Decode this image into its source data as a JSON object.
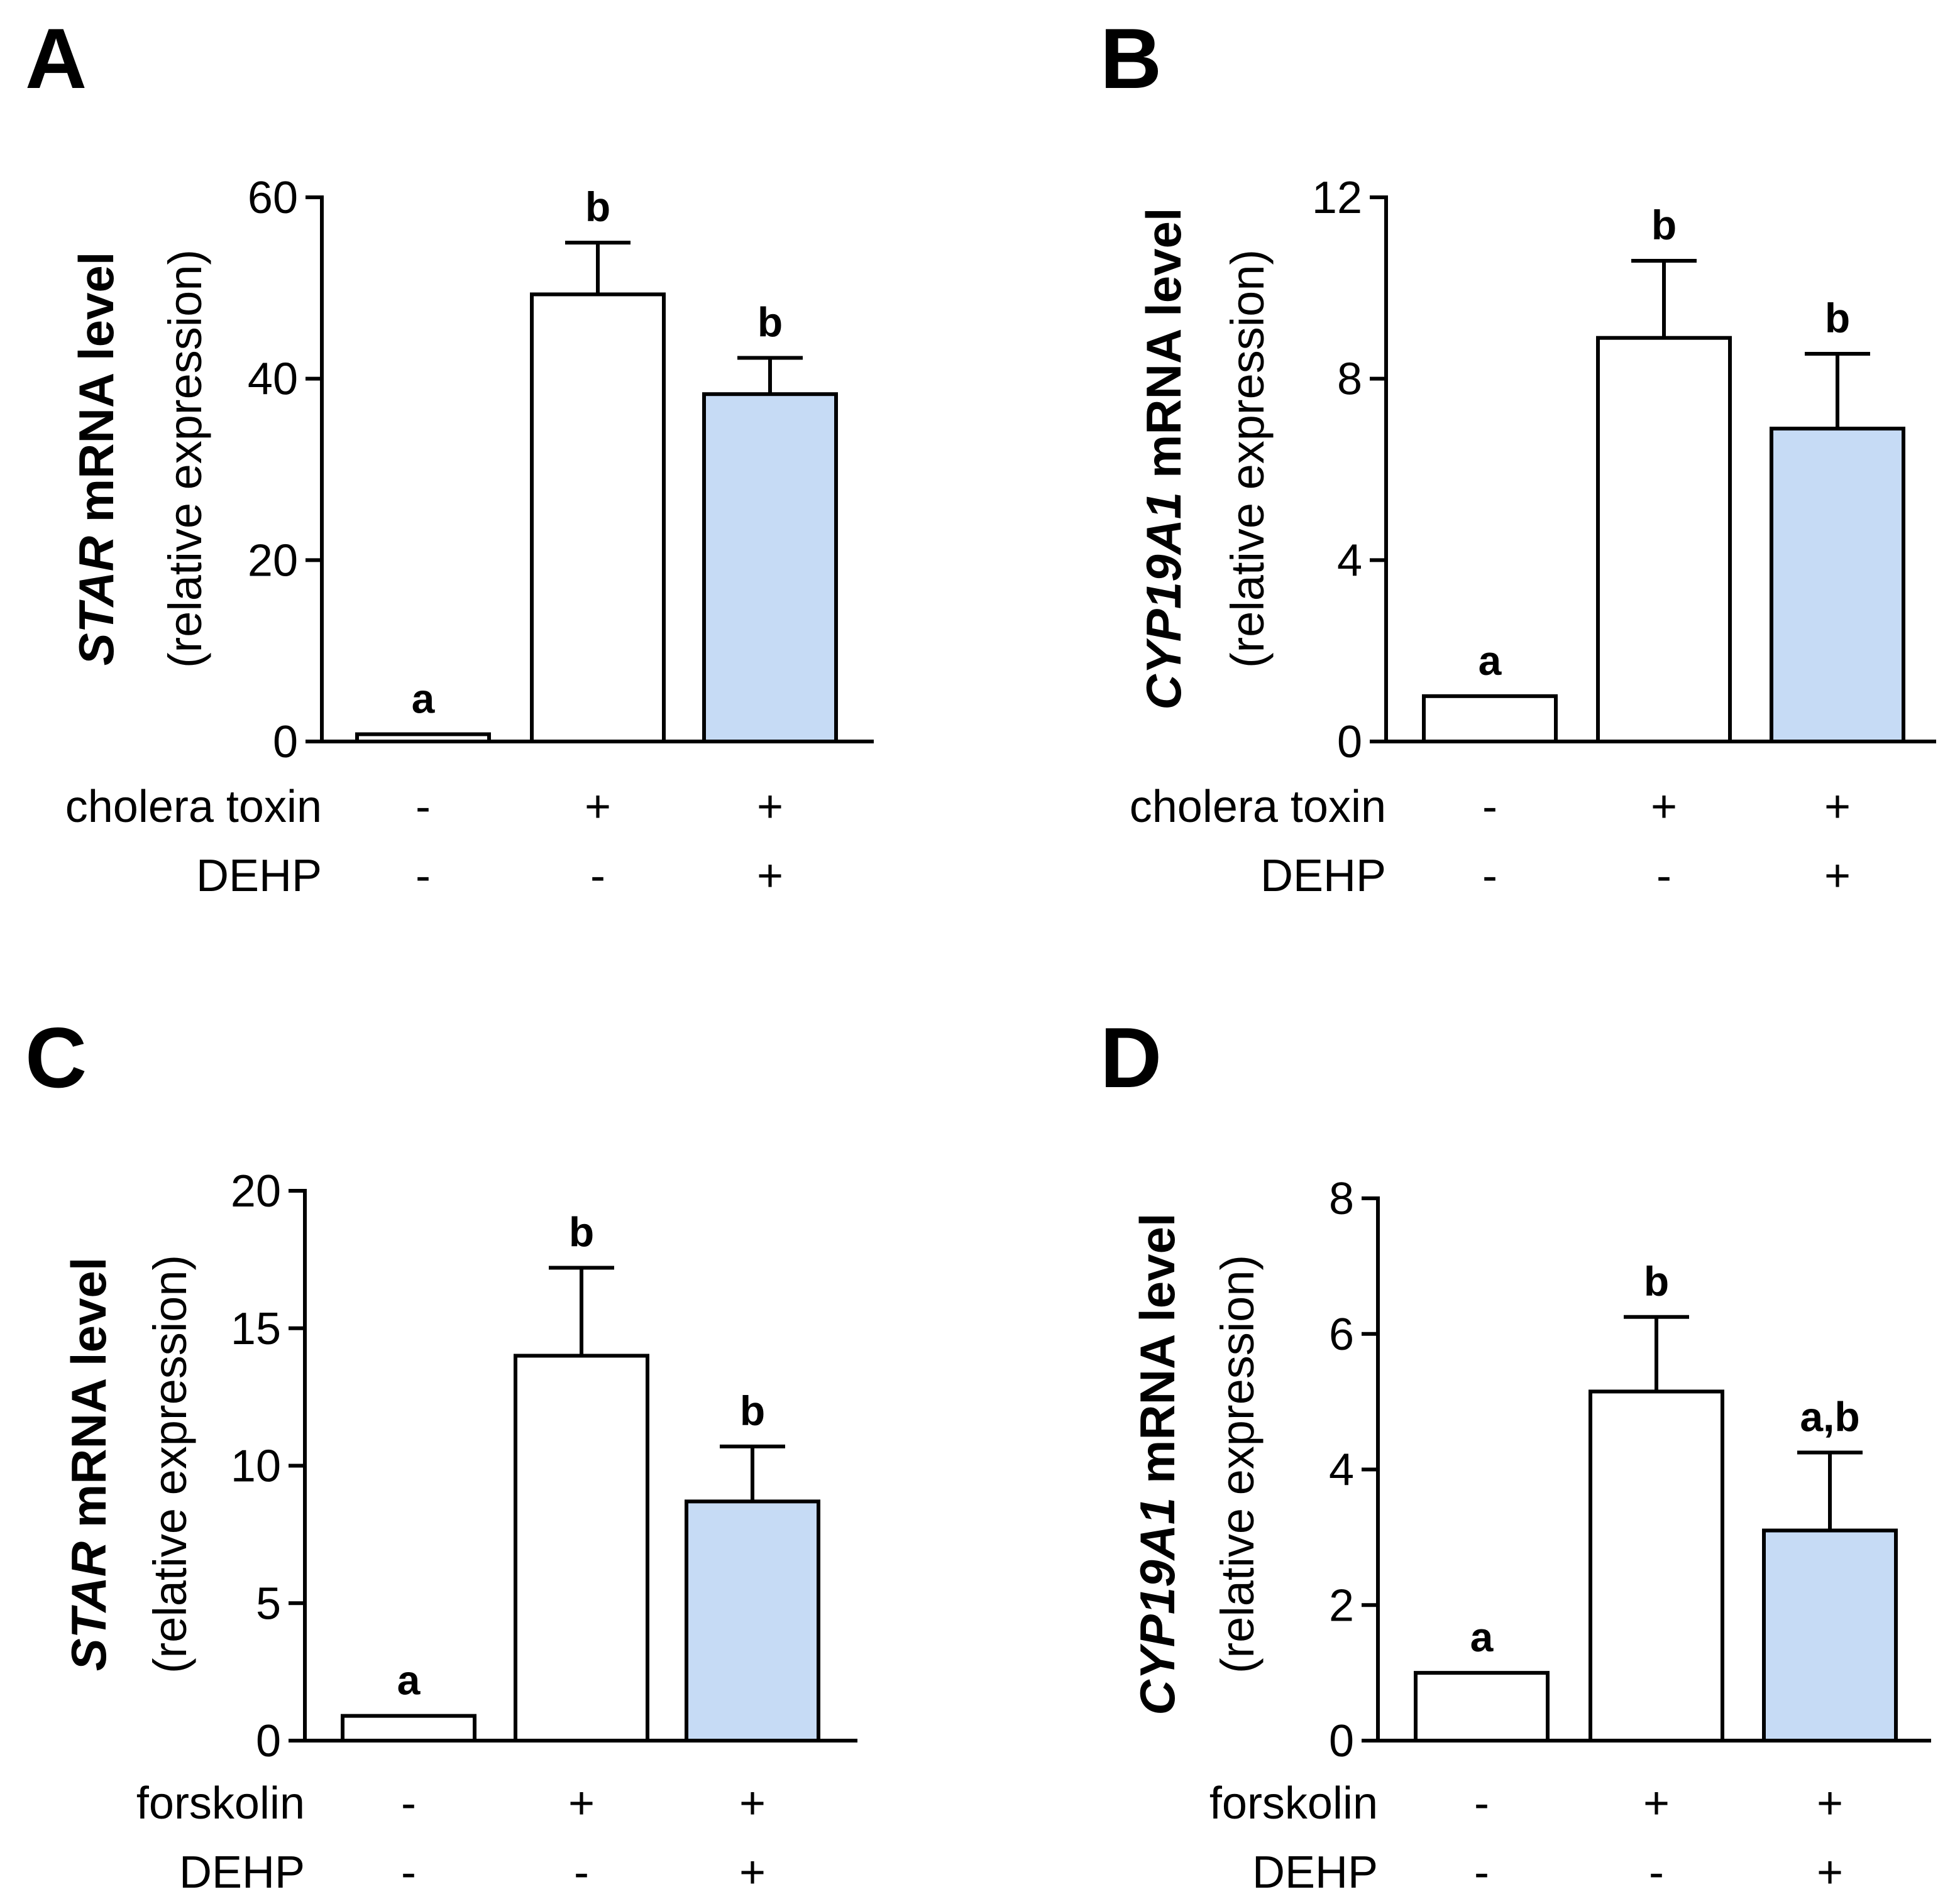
{
  "chart_data": [
    {
      "type": "bar",
      "panel": "A",
      "ylabel_gene": "STAR",
      "ylabel_rest": " mRNA level",
      "ylabel_sub": "(relative expression)",
      "ylim": [
        0,
        60
      ],
      "yticks": [
        0,
        20,
        40,
        60
      ],
      "values": [
        0.8,
        49.3,
        38.3
      ],
      "errors": [
        0,
        5.7,
        4.0
      ],
      "fills": [
        "#ffffff",
        "#ffffff",
        "#c6dbf5"
      ],
      "significance": [
        "a",
        "b",
        "b"
      ],
      "treatment_rows": [
        {
          "label": "cholera toxin",
          "marks": [
            "-",
            "+",
            "+"
          ]
        },
        {
          "label": "DEHP",
          "marks": [
            "-",
            "-",
            "+"
          ]
        }
      ]
    },
    {
      "type": "bar",
      "panel": "B",
      "ylabel_gene": "CYP19A1",
      "ylabel_rest": " mRNA level",
      "ylabel_sub": "(relative expression)",
      "ylim": [
        0,
        12
      ],
      "yticks": [
        0,
        4,
        8,
        12
      ],
      "values": [
        1.0,
        8.9,
        6.9
      ],
      "errors": [
        0,
        1.7,
        1.65
      ],
      "fills": [
        "#ffffff",
        "#ffffff",
        "#c6dbf5"
      ],
      "significance": [
        "a",
        "b",
        "b"
      ],
      "treatment_rows": [
        {
          "label": "cholera toxin",
          "marks": [
            "-",
            "+",
            "+"
          ]
        },
        {
          "label": "DEHP",
          "marks": [
            "-",
            "-",
            "+"
          ]
        }
      ]
    },
    {
      "type": "bar",
      "panel": "C",
      "ylabel_gene": "STAR",
      "ylabel_rest": " mRNA level",
      "ylabel_sub": "(relative expression)",
      "ylim": [
        0,
        20
      ],
      "yticks": [
        0,
        5,
        10,
        15,
        20
      ],
      "values": [
        0.9,
        14.0,
        8.7
      ],
      "errors": [
        0,
        3.2,
        2.0
      ],
      "fills": [
        "#ffffff",
        "#ffffff",
        "#c6dbf5"
      ],
      "significance": [
        "a",
        "b",
        "b"
      ],
      "treatment_rows": [
        {
          "label": "forskolin",
          "marks": [
            "-",
            "+",
            "+"
          ]
        },
        {
          "label": "DEHP",
          "marks": [
            "-",
            "-",
            "+"
          ]
        }
      ]
    },
    {
      "type": "bar",
      "panel": "D",
      "ylabel_gene": "CYP19A1",
      "ylabel_rest": " mRNA level",
      "ylabel_sub": "(relative expression)",
      "ylim": [
        0,
        8
      ],
      "yticks": [
        0,
        2,
        4,
        6,
        8
      ],
      "values": [
        1.0,
        5.15,
        3.1
      ],
      "errors": [
        0,
        1.1,
        1.15
      ],
      "fills": [
        "#ffffff",
        "#ffffff",
        "#c6dbf5"
      ],
      "significance": [
        "a",
        "b",
        "a,b"
      ],
      "treatment_rows": [
        {
          "label": "forskolin",
          "marks": [
            "-",
            "+",
            "+"
          ]
        },
        {
          "label": "DEHP",
          "marks": [
            "-",
            "-",
            "+"
          ]
        }
      ]
    }
  ]
}
